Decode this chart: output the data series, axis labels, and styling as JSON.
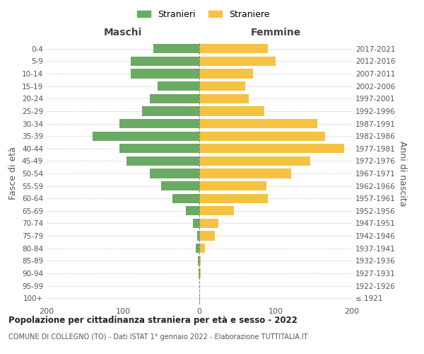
{
  "age_groups": [
    "100+",
    "95-99",
    "90-94",
    "85-89",
    "80-84",
    "75-79",
    "70-74",
    "65-69",
    "60-64",
    "55-59",
    "50-54",
    "45-49",
    "40-44",
    "35-39",
    "30-34",
    "25-29",
    "20-24",
    "15-19",
    "10-14",
    "5-9",
    "0-4"
  ],
  "birth_years": [
    "≤ 1921",
    "1922-1926",
    "1927-1931",
    "1932-1936",
    "1937-1941",
    "1942-1946",
    "1947-1951",
    "1952-1956",
    "1957-1961",
    "1962-1966",
    "1967-1971",
    "1972-1976",
    "1977-1981",
    "1982-1986",
    "1987-1991",
    "1992-1996",
    "1997-2001",
    "2002-2006",
    "2007-2011",
    "2012-2016",
    "2017-2021"
  ],
  "stranieri": [
    0,
    0,
    1,
    2,
    5,
    3,
    8,
    18,
    35,
    50,
    65,
    95,
    105,
    140,
    105,
    75,
    65,
    55,
    90,
    90,
    60
  ],
  "straniere": [
    1,
    0,
    2,
    2,
    7,
    20,
    25,
    45,
    90,
    88,
    120,
    145,
    190,
    165,
    155,
    85,
    65,
    60,
    70,
    100,
    90
  ],
  "color_stranieri": "#6aaa64",
  "color_straniere": "#f5c242",
  "xlim": 200,
  "title": "Popolazione per cittadinanza straniera per età e sesso - 2022",
  "subtitle": "COMUNE DI COLLEGNO (TO) - Dati ISTAT 1° gennaio 2022 - Elaborazione TUTTITALIA.IT",
  "xlabel_left": "Maschi",
  "xlabel_right": "Femmine",
  "ylabel_left": "Fasce di età",
  "ylabel_right": "Anni di nascita",
  "legend_stranieri": "Stranieri",
  "legend_straniere": "Straniere",
  "background_color": "#ffffff",
  "grid_color": "#cccccc"
}
